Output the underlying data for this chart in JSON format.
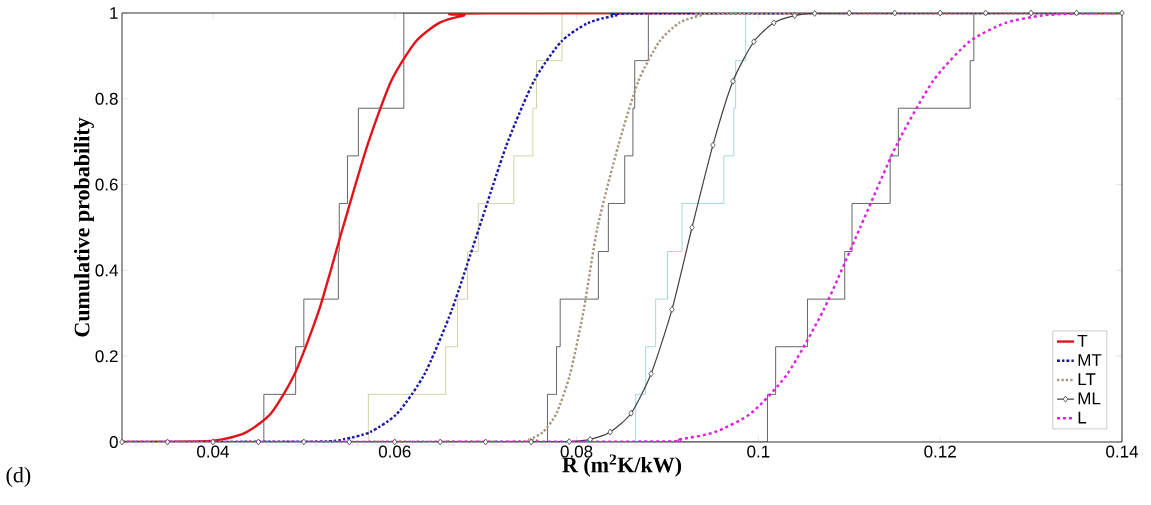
{
  "chart_data": {
    "type": "line",
    "xlabel": "R (m$^{2}$K/kW)",
    "ylabel": "Cumulative probability",
    "annotations": [
      "(d)"
    ],
    "xlim": [
      0.03,
      0.14
    ],
    "ylim": [
      0,
      1
    ],
    "xticks": [
      0.04,
      0.06,
      0.08,
      0.1,
      0.12,
      0.14
    ],
    "yticks": [
      0,
      0.2,
      0.4,
      0.6,
      0.8,
      1
    ],
    "legend": "bottom right",
    "series": [
      {
        "type": "step",
        "color": "#404040",
        "x": [
          0.03,
          0.0456,
          0.0491,
          0.05,
          0.0538,
          0.0539,
          0.0548,
          0.056,
          0.061,
          0.14
        ],
        "values": [
          0,
          0.111,
          0.222,
          0.333,
          0.444,
          0.556,
          0.667,
          0.778,
          1,
          1
        ]
      },
      {
        "type": "step",
        "color": "#c8c890",
        "x": [
          0.03,
          0.0571,
          0.0656,
          0.0669,
          0.068,
          0.0692,
          0.0731,
          0.0752,
          0.0756,
          0.0784,
          0.14
        ],
        "values": [
          0,
          0.111,
          0.222,
          0.333,
          0.444,
          0.556,
          0.667,
          0.778,
          0.889,
          1,
          1
        ]
      },
      {
        "type": "step",
        "color": "#404040",
        "x": [
          0.03,
          0.0768,
          0.0778,
          0.0782,
          0.0824,
          0.0835,
          0.0853,
          0.0862,
          0.0864,
          0.0879,
          0.14
        ],
        "values": [
          0,
          0.111,
          0.222,
          0.333,
          0.444,
          0.556,
          0.667,
          0.778,
          0.889,
          1,
          1
        ]
      },
      {
        "type": "step",
        "color": "#90d0d0",
        "x": [
          0.03,
          0.0865,
          0.0876,
          0.0887,
          0.09,
          0.0916,
          0.0962,
          0.0973,
          0.0975,
          0.0986,
          0.14
        ],
        "values": [
          0,
          0.111,
          0.222,
          0.333,
          0.444,
          0.556,
          0.667,
          0.778,
          0.889,
          1,
          1
        ]
      },
      {
        "type": "step",
        "color": "#404040",
        "x": [
          0.03,
          0.101,
          0.1019,
          0.1054,
          0.1095,
          0.1103,
          0.1145,
          0.1154,
          0.1233,
          0.1237,
          0.14
        ],
        "values": [
          0,
          0.111,
          0.222,
          0.333,
          0.444,
          0.556,
          0.667,
          0.778,
          0.889,
          1,
          1
        ]
      },
      {
        "name": "T",
        "color": "#e0141a",
        "line_style": "solid",
        "marker": "none",
        "x": [
          0.03,
          0.0384,
          0.041,
          0.0437,
          0.0464,
          0.049,
          0.0517,
          0.0543,
          0.057,
          0.0596,
          0.0623,
          0.0649,
          0.0676,
          0.0702,
          0.14
        ],
        "values": [
          0,
          0.001,
          0.006,
          0.023,
          0.067,
          0.159,
          0.309,
          0.5,
          0.692,
          0.841,
          0.933,
          0.977,
          0.994,
          0.999,
          1
        ]
      },
      {
        "name": "MT",
        "color": "#1a1aa6",
        "line_style": "dashdot",
        "marker": "none",
        "x": [
          0.03,
          0.0513,
          0.0543,
          0.0573,
          0.0603,
          0.0633,
          0.0663,
          0.0693,
          0.0723,
          0.0753,
          0.0783,
          0.0813,
          0.0843,
          0.0873,
          0.14
        ],
        "values": [
          0,
          0.001,
          0.006,
          0.023,
          0.067,
          0.159,
          0.309,
          0.5,
          0.692,
          0.841,
          0.933,
          0.977,
          0.994,
          0.999,
          1
        ]
      },
      {
        "name": "LT",
        "color": "#a89880",
        "line_style": "dotted",
        "marker": "none",
        "x": [
          0.03,
          0.0733,
          0.0748,
          0.0763,
          0.0778,
          0.0793,
          0.0808,
          0.0823,
          0.0846,
          0.0868,
          0.0891,
          0.0913,
          0.0936,
          0.0958,
          0.14
        ],
        "values": [
          0,
          0.001,
          0.006,
          0.023,
          0.067,
          0.159,
          0.309,
          0.5,
          0.692,
          0.841,
          0.933,
          0.977,
          0.994,
          0.999,
          1
        ]
      },
      {
        "name": "ML",
        "color": "#404040",
        "line_style": "solid",
        "marker": "diamond",
        "x": [
          0.03,
          0.035,
          0.04,
          0.045,
          0.05,
          0.055,
          0.06,
          0.065,
          0.07,
          0.075,
          0.0792,
          0.0815,
          0.0837,
          0.086,
          0.0882,
          0.0905,
          0.0927,
          0.095,
          0.0972,
          0.0995,
          0.1017,
          0.104,
          0.1062,
          0.11,
          0.115,
          0.12,
          0.125,
          0.13,
          0.135,
          0.14
        ],
        "values": [
          0,
          0,
          0,
          0,
          0,
          0,
          0,
          0,
          0,
          0,
          0.001,
          0.006,
          0.023,
          0.067,
          0.159,
          0.309,
          0.5,
          0.692,
          0.841,
          0.933,
          0.977,
          0.994,
          0.999,
          1,
          1,
          1,
          1,
          1,
          1,
          1
        ]
      },
      {
        "name": "L",
        "color": "#e020e0",
        "line_style": "dashed",
        "marker": "none",
        "x": [
          0.03,
          0.0872,
          0.0912,
          0.0952,
          0.0992,
          0.1032,
          0.1072,
          0.1112,
          0.1152,
          0.1192,
          0.1232,
          0.1272,
          0.1312,
          0.1352,
          0.14
        ],
        "values": [
          0,
          0.001,
          0.006,
          0.023,
          0.067,
          0.159,
          0.309,
          0.5,
          0.692,
          0.841,
          0.933,
          0.977,
          0.994,
          0.999,
          1
        ]
      }
    ]
  }
}
